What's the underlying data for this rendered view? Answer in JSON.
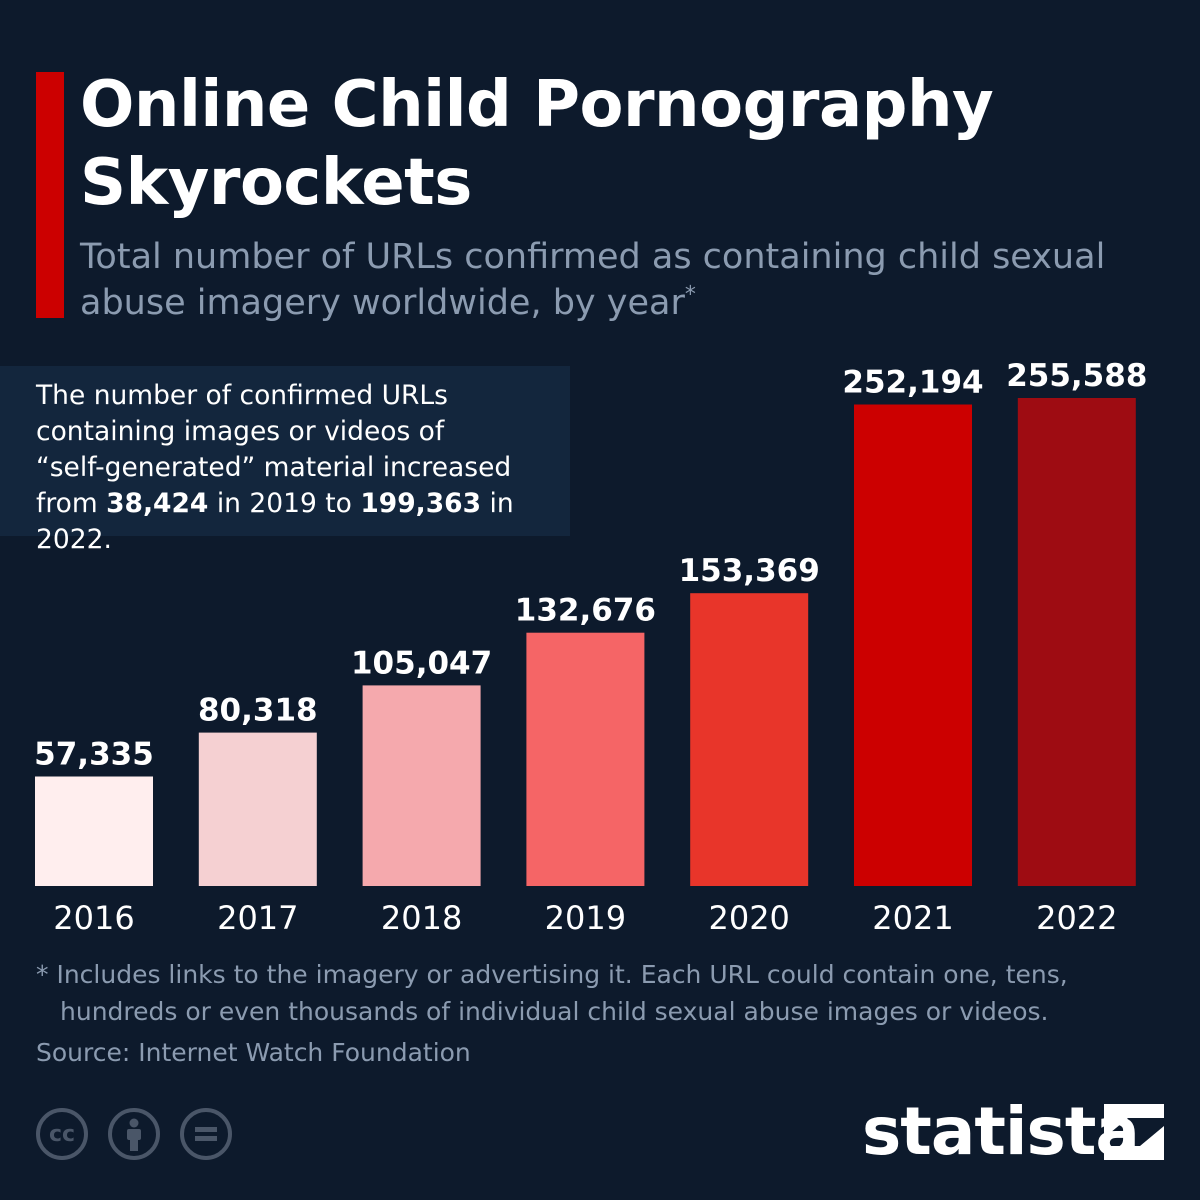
{
  "colors": {
    "background": "#0d1a2c",
    "accent": "#cc0000",
    "bars": [
      "#ffeeee",
      "#f5d0d2",
      "#f5a9ad",
      "#f56566",
      "#e8352a",
      "#cc0000",
      "#9e0c12"
    ],
    "muted_text": "#8b9bb0",
    "callout_bg": "#13263d"
  },
  "callout": {
    "line1": "The number of confirmed URLs",
    "line2": "containing images or videos of",
    "line3": "“self-generated” material increased",
    "from_word": "from",
    "value_2019": "38,424",
    "in_2019": "in 2019 to",
    "value_2022": "199,363",
    "in_2022": "in 2022."
  },
  "chart_data": {
    "type": "bar",
    "title": "Online Child Pornography Skyrockets",
    "subtitle": "Total number of URLs confirmed as containing child sexual abuse imagery worldwide, by year",
    "subtitle_mark": "*",
    "categories": [
      "2016",
      "2017",
      "2018",
      "2019",
      "2020",
      "2021",
      "2022"
    ],
    "values": [
      57335,
      80318,
      105047,
      132676,
      153369,
      252194,
      255588
    ],
    "value_labels": [
      "57,335",
      "80,318",
      "105,047",
      "132,676",
      "153,369",
      "252,194",
      "255,588"
    ],
    "xlabel": "",
    "ylabel": "",
    "ylim": [
      0,
      255588
    ],
    "grid": false,
    "legend": "none"
  },
  "footnote": {
    "line1": "* Includes links to the imagery or advertising it. Each URL could contain one, tens,",
    "line2": "hundreds or even thousands of individual child sexual abuse images or videos."
  },
  "source": "Source: Internet Watch Foundation",
  "logo": {
    "text": "statista",
    "icon": "statista-logo-icon"
  },
  "license_icons": [
    "creative-commons-icon",
    "attribution-icon",
    "no-derivatives-icon"
  ]
}
